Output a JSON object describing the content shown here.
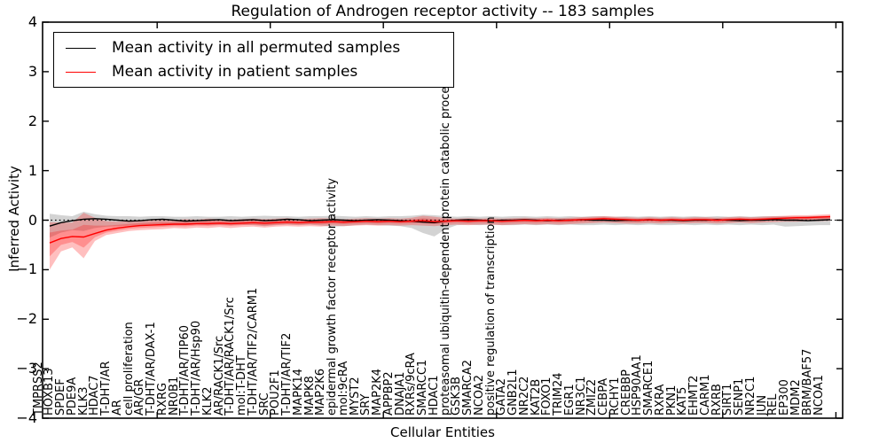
{
  "title": "Regulation of Androgen receptor activity -- 183 samples",
  "legend": {
    "items": [
      {
        "label": "Mean activity in all permuted samples",
        "color": "#000000"
      },
      {
        "label": "Mean activity in patient samples",
        "color": "#ff0000"
      }
    ]
  },
  "chart_data": {
    "type": "line",
    "title": "Regulation of Androgen receptor activity -- 183 samples",
    "xlabel": "Cellular Entities",
    "ylabel": "Inferred Activity",
    "ylim": [
      -4,
      4
    ],
    "yticks": [
      4,
      3,
      2,
      1,
      0,
      -1,
      -2,
      -3,
      -4
    ],
    "ytick_labels": [
      "4",
      "3",
      "2",
      "1",
      "0",
      "−1",
      "−2",
      "−3",
      "−4"
    ],
    "grid": false,
    "legend_position": "upper left",
    "zero_line_style": "dotted",
    "categories": [
      "TMPRSS2",
      "HOXB13",
      "SPDEF",
      "PDE9A",
      "KLK3",
      "HDAC7",
      "T-DHT/AR",
      "AR",
      "cell proliferation",
      "AR/GR",
      "T-DHT/AR/DAX-1",
      "RXRG",
      "NR0B1",
      "T-DHT/AR/TIP60",
      "T-DHT/AR/Hsp90",
      "KLK2",
      "AR/RACK1/Src",
      "T-DHT/AR/RACK1/Src",
      "mol:T-DHT",
      "T-DHT/AR/TIF2/CARM1",
      "SRC",
      "POU2F1",
      "T-DHT/AR/TIF2",
      "MAPK14",
      "MAPK8",
      "MAP2K6",
      "epidermal growth factor receptor activity",
      "mol:9cRA",
      "MYST2",
      "SRY",
      "MAP2K4",
      "APPBP2",
      "DNAJA1",
      "RXRs/9cRA",
      "SMARCC1",
      "HDAC1",
      "proteasomal ubiquitin-dependent protein catabolic process",
      "GSK3B",
      "SMARCA2",
      "NCOA2",
      "positive regulation of transcription",
      "GATA2",
      "GNB2L1",
      "NR2C2",
      "KAT2B",
      "FOXO1",
      "TRIM24",
      "EGR1",
      "NR3C1",
      "ZMIZ2",
      "CEBPA",
      "RCHY1",
      "CREBBP",
      "HSP90AA1",
      "SMARCE1",
      "RXRA",
      "PKN1",
      "KAT5",
      "EHMT2",
      "CARM1",
      "RXRB",
      "SIRT1",
      "SENP1",
      "NR2C1",
      "JUN",
      "REL",
      "EP300",
      "MDM2",
      "BRM/BAF57",
      "NCOA1"
    ],
    "series": [
      {
        "name": "Mean activity in all permuted samples",
        "color": "#000000",
        "values": [
          -0.12,
          -0.05,
          -0.01,
          0.02,
          0.03,
          0.02,
          0.0,
          -0.02,
          -0.01,
          0.01,
          0.02,
          0.0,
          -0.02,
          -0.01,
          0.0,
          0.01,
          -0.01,
          0.0,
          0.01,
          -0.01,
          0.0,
          0.02,
          0.01,
          -0.01,
          0.0,
          0.01,
          0.0,
          -0.01,
          0.0,
          0.01,
          0.0,
          -0.01,
          -0.02,
          -0.04,
          -0.05,
          -0.02,
          0.0,
          0.01,
          0.0,
          -0.01,
          0.0,
          0.0,
          0.01,
          0.0,
          -0.01,
          0.0,
          0.0,
          0.01,
          0.0,
          0.0,
          -0.01,
          0.0,
          0.0,
          0.01,
          0.0,
          0.0,
          -0.01,
          0.0,
          0.0,
          0.01,
          0.0,
          -0.01,
          0.0,
          0.0,
          0.01,
          0.0,
          0.0,
          -0.01,
          0.0,
          0.01
        ]
      },
      {
        "name": "Mean activity in patient samples",
        "color": "#ff0000",
        "values": [
          -0.46,
          -0.37,
          -0.33,
          -0.34,
          -0.27,
          -0.2,
          -0.16,
          -0.13,
          -0.11,
          -0.1,
          -0.09,
          -0.08,
          -0.08,
          -0.07,
          -0.07,
          -0.06,
          -0.07,
          -0.06,
          -0.05,
          -0.06,
          -0.05,
          -0.04,
          -0.05,
          -0.04,
          -0.04,
          -0.03,
          -0.04,
          -0.03,
          -0.02,
          -0.03,
          -0.02,
          -0.03,
          -0.02,
          -0.01,
          -0.03,
          -0.02,
          -0.01,
          -0.02,
          -0.01,
          -0.01,
          -0.02,
          -0.01,
          0.0,
          -0.01,
          0.0,
          -0.01,
          0.0,
          0.01,
          0.02,
          0.03,
          0.02,
          0.01,
          0.0,
          0.01,
          0.0,
          0.01,
          0.0,
          0.01,
          0.01,
          0.0,
          0.01,
          0.02,
          0.01,
          0.02,
          0.03,
          0.04,
          0.05,
          0.05,
          0.06,
          0.07
        ]
      }
    ],
    "bands": [
      {
        "name": "permuted samples spread",
        "color": "rgba(110,110,110,0.30)",
        "upper": [
          0.13,
          0.1,
          0.08,
          0.17,
          0.12,
          0.09,
          0.08,
          0.08,
          0.07,
          0.08,
          0.08,
          0.07,
          0.07,
          0.08,
          0.07,
          0.07,
          0.08,
          0.07,
          0.08,
          0.09,
          0.08,
          0.08,
          0.07,
          0.08,
          0.08,
          0.09,
          0.08,
          0.07,
          0.08,
          0.07,
          0.08,
          0.08,
          0.09,
          0.11,
          0.1,
          0.08,
          0.07,
          0.08,
          0.07,
          0.08,
          0.07,
          0.08,
          0.08,
          0.07,
          0.08,
          0.07,
          0.08,
          0.07,
          0.08,
          0.08,
          0.07,
          0.08,
          0.07,
          0.08,
          0.07,
          0.08,
          0.07,
          0.08,
          0.07,
          0.08,
          0.07,
          0.08,
          0.07,
          0.08,
          0.08,
          0.08,
          0.07,
          0.08,
          0.08,
          0.08
        ],
        "lower": [
          -0.35,
          -0.25,
          -0.2,
          -0.22,
          -0.16,
          -0.13,
          -0.12,
          -0.11,
          -0.1,
          -0.1,
          -0.11,
          -0.1,
          -0.1,
          -0.09,
          -0.1,
          -0.09,
          -0.1,
          -0.09,
          -0.1,
          -0.12,
          -0.1,
          -0.09,
          -0.1,
          -0.09,
          -0.11,
          -0.13,
          -0.12,
          -0.1,
          -0.09,
          -0.1,
          -0.11,
          -0.12,
          -0.16,
          -0.26,
          -0.33,
          -0.18,
          -0.1,
          -0.09,
          -0.1,
          -0.09,
          -0.1,
          -0.1,
          -0.09,
          -0.1,
          -0.09,
          -0.1,
          -0.09,
          -0.1,
          -0.1,
          -0.09,
          -0.1,
          -0.09,
          -0.1,
          -0.09,
          -0.1,
          -0.1,
          -0.09,
          -0.1,
          -0.09,
          -0.1,
          -0.09,
          -0.1,
          -0.09,
          -0.1,
          -0.09,
          -0.13,
          -0.12,
          -0.11,
          -0.1,
          -0.1
        ]
      },
      {
        "name": "patient samples spread",
        "color": "rgba(255,0,0,0.25)",
        "upper": [
          -0.04,
          -0.05,
          -0.05,
          0.15,
          0.05,
          -0.02,
          -0.03,
          -0.02,
          -0.01,
          0.0,
          0.01,
          0.0,
          0.02,
          0.01,
          0.03,
          0.02,
          0.01,
          0.02,
          0.03,
          0.02,
          0.03,
          0.04,
          0.02,
          0.03,
          0.04,
          0.03,
          0.02,
          0.03,
          0.04,
          0.03,
          0.04,
          0.03,
          0.05,
          0.09,
          0.07,
          0.04,
          0.03,
          0.04,
          0.03,
          0.04,
          0.03,
          0.04,
          0.05,
          0.04,
          0.05,
          0.04,
          0.05,
          0.06,
          0.07,
          0.08,
          0.07,
          0.06,
          0.05,
          0.06,
          0.05,
          0.06,
          0.05,
          0.06,
          0.06,
          0.05,
          0.06,
          0.07,
          0.06,
          0.07,
          0.08,
          0.09,
          0.1,
          0.1,
          0.11,
          0.12
        ],
        "lower": [
          -1.0,
          -0.63,
          -0.55,
          -0.77,
          -0.42,
          -0.3,
          -0.26,
          -0.22,
          -0.2,
          -0.19,
          -0.18,
          -0.16,
          -0.17,
          -0.15,
          -0.16,
          -0.14,
          -0.16,
          -0.14,
          -0.13,
          -0.15,
          -0.13,
          -0.12,
          -0.13,
          -0.12,
          -0.13,
          -0.11,
          -0.12,
          -0.11,
          -0.1,
          -0.11,
          -0.1,
          -0.11,
          -0.1,
          -0.11,
          -0.12,
          -0.1,
          -0.09,
          -0.1,
          -0.09,
          -0.09,
          -0.1,
          -0.09,
          -0.08,
          -0.09,
          -0.08,
          -0.09,
          -0.08,
          -0.07,
          -0.06,
          -0.05,
          -0.06,
          -0.07,
          -0.07,
          -0.06,
          -0.07,
          -0.06,
          -0.07,
          -0.06,
          -0.06,
          -0.07,
          -0.06,
          -0.05,
          -0.06,
          -0.05,
          -0.04,
          -0.03,
          -0.03,
          -0.02,
          -0.02,
          -0.01
        ]
      }
    ]
  }
}
